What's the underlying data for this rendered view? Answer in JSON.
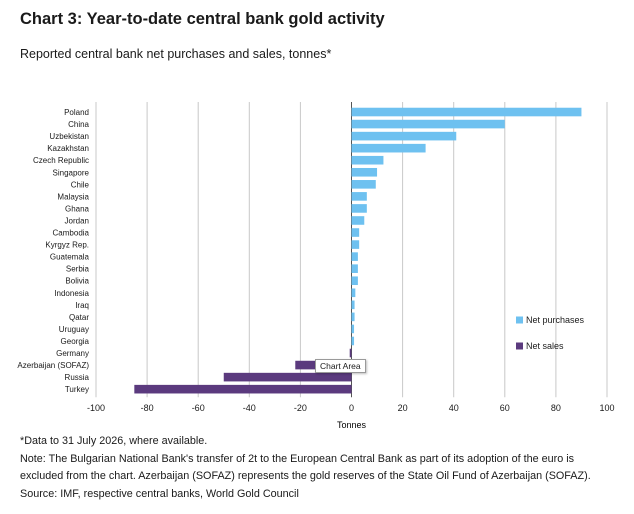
{
  "title": "Chart 3: Year-to-date central bank gold activity",
  "subtitle": "Reported central bank net purchases and sales, tonnes*",
  "tooltip": "Chart Area",
  "notes": [
    "*Data to 31 July 2026, where available.",
    "Note: The Bulgarian National Bank's transfer of 2t to the European Central Bank as part of its adoption of the euro is",
    "excluded from the chart. Azerbaijan (SOFAZ) represents the gold reserves of the State Oil Fund of Azerbaijan (SOFAZ).",
    "Source: IMF, respective central banks, World Gold Council"
  ],
  "chart_data": {
    "type": "bar",
    "orientation": "horizontal",
    "categories": [
      "Poland",
      "China",
      "Uzbekistan",
      "Kazakhstan",
      "Czech Republic",
      "Singapore",
      "Chile",
      "Malaysia",
      "Ghana",
      "Jordan",
      "Cambodia",
      "Kyrgyz Rep.",
      "Guatemala",
      "Serbia",
      "Bolivia",
      "Indonesia",
      "Iraq",
      "Qatar",
      "Uruguay",
      "Georgia",
      "Germany",
      "Azerbaijan (SOFAZ)",
      "Russia",
      "Turkey"
    ],
    "values": [
      90,
      60,
      41,
      29,
      12.5,
      10,
      9.5,
      6,
      6,
      5,
      3,
      3,
      2.5,
      2.5,
      2.5,
      1.5,
      1.2,
      1.2,
      1,
      1,
      -0.7,
      -22,
      -50,
      -85
    ],
    "series": [
      {
        "name": "Net purchases",
        "color": "#6ec1f0"
      },
      {
        "name": "Net sales",
        "color": "#5b3a7e"
      }
    ],
    "xlabel": "Tonnes",
    "xlim": [
      -100,
      100
    ],
    "xticks": [
      -100,
      -80,
      -60,
      -40,
      -20,
      0,
      20,
      40,
      60,
      80,
      100
    ],
    "grid": true,
    "legend_position": "right"
  }
}
